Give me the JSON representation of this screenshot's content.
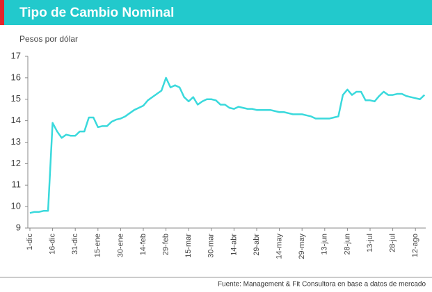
{
  "chart_data": {
    "type": "line",
    "title": "Tipo de Cambio Nominal",
    "y_label": "Pesos por dólar",
    "source": "Fuente: Management & Fit Consultora en base a datos de mercado",
    "categories": [
      "1-dic",
      null,
      null,
      null,
      null,
      "16-dic",
      null,
      null,
      null,
      null,
      "31-dic",
      null,
      null,
      null,
      null,
      "15-ene",
      null,
      null,
      null,
      null,
      "30-ene",
      null,
      null,
      null,
      null,
      "14-feb",
      null,
      null,
      null,
      null,
      "29-feb",
      null,
      null,
      null,
      null,
      "15-mar",
      null,
      null,
      null,
      null,
      "30-mar",
      null,
      null,
      null,
      null,
      "14-abr",
      null,
      null,
      null,
      null,
      "29-abr",
      null,
      null,
      null,
      null,
      "14-may",
      null,
      null,
      null,
      null,
      "29-may",
      null,
      null,
      null,
      null,
      "13-jun",
      null,
      null,
      null,
      null,
      "28-jun",
      null,
      null,
      null,
      null,
      "13-jul",
      null,
      null,
      null,
      null,
      "28-jul",
      null,
      null,
      null,
      null,
      "12-ago",
      null,
      null
    ],
    "series": [
      {
        "name": "Pesos por dólar",
        "color": "#3ad9dc",
        "values": [
          9.7,
          9.75,
          9.75,
          9.8,
          9.8,
          13.9,
          13.5,
          13.2,
          13.35,
          13.3,
          13.3,
          13.5,
          13.5,
          14.15,
          14.15,
          13.7,
          13.75,
          13.75,
          13.95,
          14.05,
          14.1,
          14.2,
          14.35,
          14.5,
          14.6,
          14.7,
          14.95,
          15.1,
          15.25,
          15.4,
          16.0,
          15.55,
          15.65,
          15.55,
          15.1,
          14.9,
          15.1,
          14.75,
          14.9,
          15.0,
          15.0,
          14.95,
          14.75,
          14.75,
          14.6,
          14.55,
          14.65,
          14.6,
          14.55,
          14.55,
          14.5,
          14.5,
          14.5,
          14.5,
          14.45,
          14.4,
          14.4,
          14.35,
          14.3,
          14.3,
          14.3,
          14.25,
          14.2,
          14.1,
          14.1,
          14.1,
          14.1,
          14.15,
          14.2,
          15.2,
          15.45,
          15.2,
          15.35,
          15.35,
          14.95,
          14.95,
          14.9,
          15.15,
          15.35,
          15.2,
          15.2,
          15.25,
          15.25,
          15.15,
          15.1,
          15.05,
          15.0,
          15.2
        ]
      }
    ],
    "ylim": [
      9,
      17
    ],
    "yticks": [
      9,
      10,
      11,
      12,
      13,
      14,
      15,
      16,
      17
    ]
  }
}
